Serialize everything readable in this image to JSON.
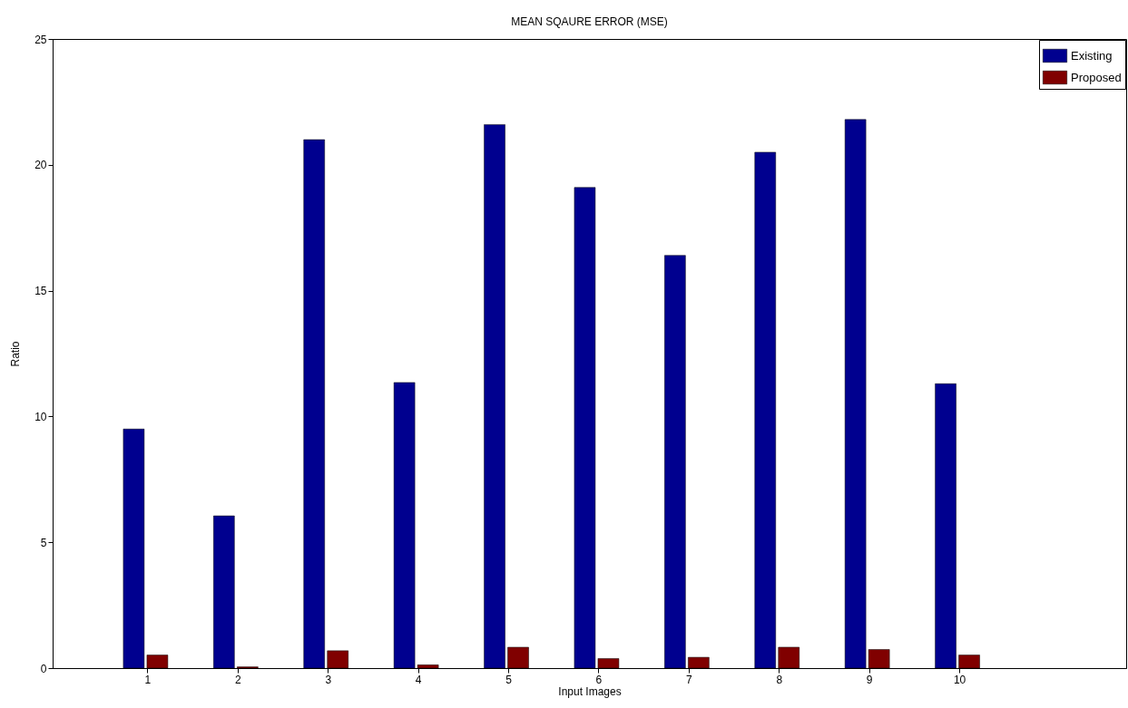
{
  "chart_data": {
    "type": "bar",
    "title": "MEAN SQAURE ERROR (MSE)",
    "xlabel": "Input Images",
    "ylabel": "Ratio",
    "x": [
      1,
      2,
      3,
      4,
      5,
      6,
      7,
      8,
      9,
      10
    ],
    "series": [
      {
        "name": "Existing",
        "color": "#00008f",
        "values": [
          9.5,
          6.05,
          21.0,
          11.35,
          21.6,
          19.1,
          16.4,
          20.5,
          21.8,
          11.3
        ]
      },
      {
        "name": "Proposed",
        "color": "#800000",
        "values": [
          0.52,
          0.05,
          0.69,
          0.13,
          0.83,
          0.38,
          0.43,
          0.83,
          0.74,
          0.52
        ]
      }
    ],
    "xlim": [
      0,
      11.8
    ],
    "xticks": [
      1,
      2,
      3,
      4,
      5,
      6,
      7,
      8,
      9,
      10
    ],
    "ylim": [
      0,
      25
    ],
    "yticks": [
      0,
      5,
      10,
      15,
      20,
      25
    ],
    "grid": false,
    "legend": "top right"
  }
}
